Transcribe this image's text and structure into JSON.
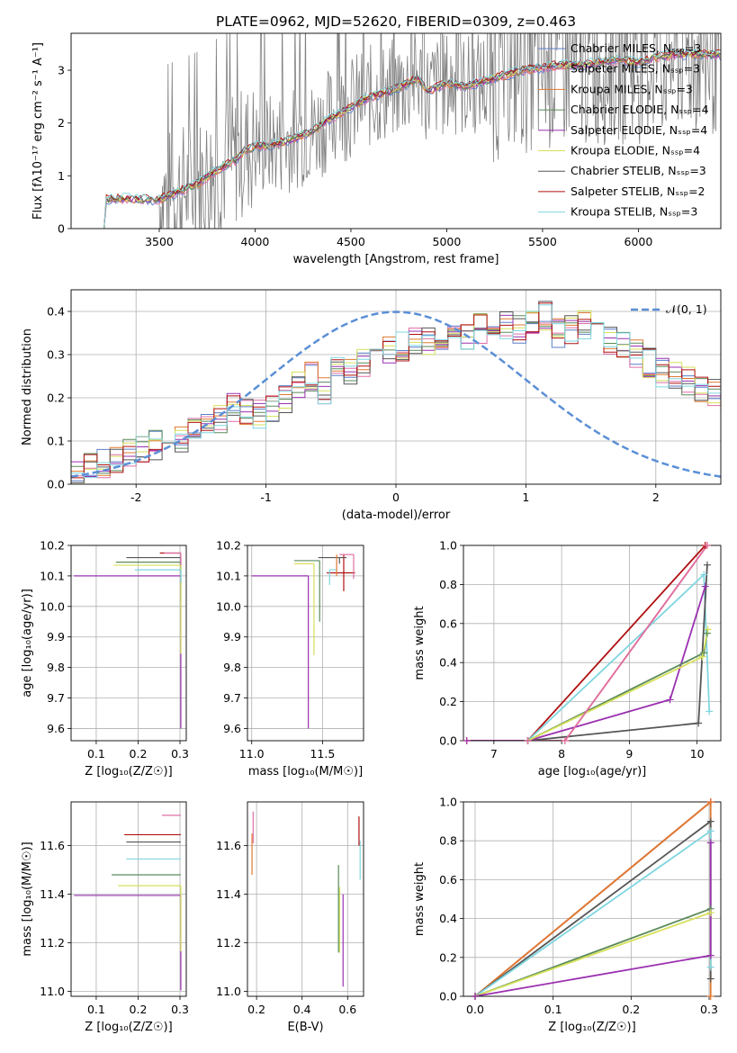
{
  "figure_title": "PLATE=0962, MJD=52620, FIBERID=0309, z=0.463",
  "colors": {
    "Chabrier MILES": "#5b7fc9",
    "Salpeter MILES": "#e06fa6",
    "Kroupa MILES": "#e07a30",
    "Chabrier ELODIE": "#5a8a5a",
    "Salpeter ELODIE": "#9b30b0",
    "Kroupa ELODIE": "#d6e05a",
    "Chabrier STELIB": "#555555",
    "Salpeter STELIB": "#b01010",
    "Kroupa STELIB": "#7fd6e0",
    "data": "#808080",
    "normal": "#5b8fd6",
    "grid": "#b0b0b0"
  },
  "chart_data": [
    {
      "id": "spectrum",
      "type": "line",
      "title": "PLATE=0962, MJD=52620, FIBERID=0309, z=0.463",
      "xlabel": "wavelength [Angstrom, rest frame]",
      "ylabel": "Flux [fλ10⁻¹⁷ erg cm⁻² s⁻¹ A⁻¹]",
      "xlim": [
        3040,
        6430
      ],
      "ylim": [
        0,
        3.7
      ],
      "xticks": [
        3500,
        4000,
        4500,
        5000,
        5500,
        6000
      ],
      "yticks": [
        0,
        1,
        2,
        3
      ],
      "grid": false,
      "legend_position": "top-right",
      "legend": [
        "Chabrier MILES, Nₛₛₚ=3",
        "Salpeter MILES, Nₛₛₚ=3",
        "Kroupa MILES, Nₛₛₚ=3",
        "Chabrier ELODIE, Nₛₛₚ=4",
        "Salpeter ELODIE, Nₛₛₚ=4",
        "Kroupa ELODIE, Nₛₛₚ=4",
        "Chabrier STELIB, Nₛₛₚ=3",
        "Salpeter STELIB, Nₛₛₚ=2",
        "Kroupa STELIB, Nₛₛₚ=3"
      ],
      "continuum": {
        "x": [
          3200,
          3220,
          3300,
          3400,
          3500,
          3600,
          3700,
          3800,
          3900,
          3950,
          4000,
          4100,
          4200,
          4300,
          4400,
          4500,
          4600,
          4700,
          4800,
          4850,
          4900,
          5000,
          5100,
          5200,
          5300,
          5400,
          5500,
          5600,
          5700,
          5800,
          5900,
          6000,
          6100,
          6200
        ],
        "y": [
          0.0,
          0.55,
          0.57,
          0.55,
          0.55,
          0.7,
          0.85,
          1.1,
          1.3,
          1.5,
          1.55,
          1.6,
          1.7,
          1.85,
          2.1,
          2.3,
          2.5,
          2.6,
          2.75,
          2.85,
          2.6,
          2.75,
          2.7,
          2.8,
          2.9,
          3.0,
          3.05,
          3.1,
          3.1,
          3.15,
          3.2,
          3.15,
          3.25,
          3.3
        ]
      },
      "data_series": {
        "x_start": 3500,
        "x_end": 6430,
        "n": 700
      }
    },
    {
      "id": "residuals",
      "type": "line",
      "xlabel": "(data-model)/error",
      "ylabel": "Normed distribution",
      "xlim": [
        -2.5,
        2.5
      ],
      "ylim": [
        0,
        0.45
      ],
      "xticks": [
        -2,
        -1,
        0,
        1,
        2
      ],
      "yticks": [
        0.0,
        0.1,
        0.2,
        0.3,
        0.4
      ],
      "grid": true,
      "legend_position": "top-right",
      "legend": [
        "𝒩(0, 1)"
      ],
      "bin_width": 0.1,
      "histogram_base": [
        0.02,
        0.04,
        0.05,
        0.06,
        0.07,
        0.08,
        0.09,
        0.1,
        0.1,
        0.12,
        0.13,
        0.15,
        0.18,
        0.17,
        0.16,
        0.18,
        0.2,
        0.23,
        0.25,
        0.22,
        0.27,
        0.26,
        0.28,
        0.3,
        0.31,
        0.32,
        0.33,
        0.33,
        0.34,
        0.35,
        0.34,
        0.36,
        0.38,
        0.37,
        0.36,
        0.38,
        0.39,
        0.35,
        0.36,
        0.37,
        0.34,
        0.33,
        0.32,
        0.3,
        0.28,
        0.26,
        0.25,
        0.24,
        0.22,
        0.21,
        0.2,
        0.19,
        0.18,
        0.17,
        0.16,
        0.15,
        0.14,
        0.14,
        0.12,
        0.11,
        0.1,
        0.09,
        0.08,
        0.07,
        0.06,
        0.05,
        0.05,
        0.05,
        0.04,
        0.04
      ]
    },
    {
      "id": "age_vs_Z",
      "type": "scatter",
      "xlabel": "Z [log₁₀(Z/Z☉)]",
      "ylabel": "age  [log₁₀(age/yr)]",
      "xlim": [
        0.04,
        0.315
      ],
      "ylim": [
        9.56,
        10.2
      ],
      "xticks": [
        0.1,
        0.2,
        0.3
      ],
      "yticks": [
        9.6,
        9.7,
        9.8,
        9.9,
        10.0,
        10.1,
        10.2
      ],
      "grid": true,
      "points": [
        {
          "model": "Salpeter ELODIE",
          "x": 0.302,
          "y": 10.1,
          "xerr": [
            0.255,
            0.0
          ],
          "yerr": [
            0.5,
            0.0
          ]
        },
        {
          "model": "Salpeter STELIB",
          "x": 0.302,
          "y": 10.175,
          "xerr": [
            0.05,
            0.0
          ],
          "yerr": [
            0.0,
            0.0
          ]
        },
        {
          "model": "Chabrier STELIB",
          "x": 0.302,
          "y": 10.16,
          "xerr": [
            0.13,
            0.0
          ],
          "yerr": [
            0.05,
            0.0
          ]
        },
        {
          "model": "Chabrier ELODIE",
          "x": 0.302,
          "y": 10.145,
          "xerr": [
            0.155,
            0.0
          ],
          "yerr": [
            0.13,
            0.0
          ]
        },
        {
          "model": "Kroupa ELODIE",
          "x": 0.302,
          "y": 10.135,
          "xerr": [
            0.16,
            0.0
          ],
          "yerr": [
            0.29,
            0.0
          ]
        },
        {
          "model": "Kroupa STELIB",
          "x": 0.302,
          "y": 10.12,
          "xerr": [
            0.11,
            0.0
          ],
          "yerr": [
            0.04,
            0.0
          ]
        },
        {
          "model": "Salpeter MILES",
          "x": 0.302,
          "y": 10.175,
          "xerr": [
            0.04,
            0.0
          ],
          "yerr": [
            0.04,
            0.0
          ]
        }
      ]
    },
    {
      "id": "age_vs_mass",
      "type": "scatter",
      "xlabel": "mass [log₁₀(M/M☉)]",
      "ylabel": "",
      "xlim": [
        10.97,
        11.79
      ],
      "ylim": [
        9.56,
        10.2
      ],
      "xticks": [
        11.0,
        11.5
      ],
      "yticks": [
        9.6,
        9.7,
        9.8,
        9.9,
        10.0,
        10.1,
        10.2
      ],
      "grid": true,
      "points": [
        {
          "model": "Salpeter ELODIE",
          "x": 11.4,
          "y": 10.1,
          "xerr": [
            0.4,
            0.0
          ],
          "yerr": [
            0.5,
            0.0
          ]
        },
        {
          "model": "Salpeter STELIB",
          "x": 11.65,
          "y": 10.11,
          "xerr": [
            0.12,
            0.08
          ],
          "yerr": [
            0.06,
            0.06
          ]
        },
        {
          "model": "Chabrier STELIB",
          "x": 11.62,
          "y": 10.16,
          "xerr": [
            0.15,
            0.05
          ],
          "yerr": [
            0.02,
            0.0
          ]
        },
        {
          "model": "Chabrier ELODIE",
          "x": 11.48,
          "y": 10.15,
          "xerr": [
            0.18,
            0.0
          ],
          "yerr": [
            0.2,
            0.0
          ]
        },
        {
          "model": "Kroupa ELODIE",
          "x": 11.44,
          "y": 10.14,
          "xerr": [
            0.14,
            0.0
          ],
          "yerr": [
            0.3,
            0.0
          ]
        },
        {
          "model": "Kroupa STELIB",
          "x": 11.55,
          "y": 10.12,
          "xerr": [
            0.0,
            0.05
          ],
          "yerr": [
            0.05,
            0.0
          ]
        },
        {
          "model": "Salpeter MILES",
          "x": 11.72,
          "y": 10.17,
          "xerr": [
            0.1,
            0.0
          ],
          "yerr": [
            0.08,
            0.0
          ]
        },
        {
          "model": "Kroupa MILES",
          "x": 11.6,
          "y": 10.17,
          "xerr": [
            0.0,
            0.0
          ],
          "yerr": [
            0.07,
            0.0
          ]
        }
      ]
    },
    {
      "id": "weight_vs_age",
      "type": "line",
      "xlabel": "age  [log₁₀(age/yr)]",
      "ylabel": "mass weight",
      "xlim": [
        6.55,
        10.35
      ],
      "ylim": [
        0,
        1.0
      ],
      "xticks": [
        7,
        8,
        9,
        10
      ],
      "yticks": [
        0.0,
        0.2,
        0.4,
        0.6,
        0.8,
        1.0
      ],
      "grid": true,
      "series": [
        {
          "model": "Salpeter STELIB",
          "x": [
            7.5,
            10.12
          ],
          "y": [
            0.0,
            1.0
          ]
        },
        {
          "model": "Kroupa MILES",
          "x": [
            6.6,
            8.05,
            10.15
          ],
          "y": [
            0.0,
            0.0,
            1.0
          ]
        },
        {
          "model": "Kroupa STELIB",
          "x": [
            7.5,
            10.1,
            10.18
          ],
          "y": [
            0.0,
            0.85,
            0.15
          ]
        },
        {
          "model": "Chabrier STELIB",
          "x": [
            7.5,
            10.02,
            10.15
          ],
          "y": [
            0.0,
            0.09,
            0.9
          ]
        },
        {
          "model": "Salpeter ELODIE",
          "x": [
            6.6,
            7.5,
            9.6,
            10.12
          ],
          "y": [
            0.0,
            0.0,
            0.21,
            0.79
          ]
        },
        {
          "model": "Chabrier ELODIE",
          "x": [
            7.5,
            10.1,
            10.15
          ],
          "y": [
            0.0,
            0.45,
            0.55
          ]
        },
        {
          "model": "Kroupa ELODIE",
          "x": [
            7.5,
            10.08,
            10.16
          ],
          "y": [
            0.0,
            0.43,
            0.57
          ]
        },
        {
          "model": "Salpeter MILES",
          "x": [
            7.5,
            8.05,
            10.15
          ],
          "y": [
            0.0,
            0.0,
            1.0
          ]
        }
      ]
    },
    {
      "id": "mass_vs_Z",
      "type": "scatter",
      "xlabel": "Z [log₁₀(Z/Z☉)]",
      "ylabel": "mass [log₁₀(M/M☉)]",
      "xlim": [
        0.04,
        0.315
      ],
      "ylim": [
        10.98,
        11.78
      ],
      "xticks": [
        0.1,
        0.2,
        0.3
      ],
      "yticks": [
        11.0,
        11.2,
        11.4,
        11.6
      ],
      "grid": true,
      "points": [
        {
          "model": "Salpeter ELODIE",
          "x": 0.302,
          "y": 11.395,
          "xerr": [
            0.255,
            0.0
          ],
          "yerr": [
            0.39,
            0.0
          ]
        },
        {
          "model": "Kroupa ELODIE",
          "x": 0.302,
          "y": 11.435,
          "xerr": [
            0.15,
            0.0
          ],
          "yerr": [
            0.27,
            0.0
          ]
        },
        {
          "model": "Chabrier ELODIE",
          "x": 0.302,
          "y": 11.48,
          "xerr": [
            0.165,
            0.0
          ],
          "yerr": [
            0.0,
            0.0
          ]
        },
        {
          "model": "Kroupa STELIB",
          "x": 0.302,
          "y": 11.545,
          "xerr": [
            0.13,
            0.0
          ],
          "yerr": [
            0.0,
            0.0
          ]
        },
        {
          "model": "Chabrier STELIB",
          "x": 0.302,
          "y": 11.615,
          "xerr": [
            0.13,
            0.0
          ],
          "yerr": [
            0.0,
            0.0
          ]
        },
        {
          "model": "Salpeter STELIB",
          "x": 0.302,
          "y": 11.645,
          "xerr": [
            0.135,
            0.0
          ],
          "yerr": [
            0.0,
            0.0
          ]
        },
        {
          "model": "Salpeter MILES",
          "x": 0.302,
          "y": 11.725,
          "xerr": [
            0.045,
            0.0
          ],
          "yerr": [
            0.0,
            0.0
          ]
        }
      ]
    },
    {
      "id": "mass_vs_EBV",
      "type": "scatter",
      "xlabel": "E(B-V)",
      "ylabel": "",
      "xlim": [
        0.16,
        0.67
      ],
      "ylim": [
        10.98,
        11.78
      ],
      "xticks": [
        0.2,
        0.4,
        0.6
      ],
      "yticks": [
        11.0,
        11.2,
        11.4,
        11.6
      ],
      "grid": true,
      "points": [
        {
          "model": "Salpeter ELODIE",
          "x": 0.58,
          "y": 11.4,
          "xerr": [
            0,
            0
          ],
          "yerr": [
            0.38,
            0.0
          ]
        },
        {
          "model": "Kroupa ELODIE",
          "x": 0.565,
          "y": 11.43,
          "xerr": [
            0,
            0
          ],
          "yerr": [
            0.27,
            0.0
          ]
        },
        {
          "model": "Chabrier ELODIE",
          "x": 0.56,
          "y": 11.48,
          "xerr": [
            0,
            0
          ],
          "yerr": [
            0.32,
            0.04
          ]
        },
        {
          "model": "Kroupa MILES",
          "x": 0.18,
          "y": 11.6,
          "xerr": [
            0,
            0
          ],
          "yerr": [
            0.12,
            0.05
          ]
        },
        {
          "model": "Salpeter MILES",
          "x": 0.185,
          "y": 11.65,
          "xerr": [
            0,
            0
          ],
          "yerr": [
            0.04,
            0.09
          ]
        },
        {
          "model": "Salpeter STELIB",
          "x": 0.65,
          "y": 11.65,
          "xerr": [
            0,
            0
          ],
          "yerr": [
            0.05,
            0.07
          ]
        },
        {
          "model": "Kroupa STELIB",
          "x": 0.655,
          "y": 11.56,
          "xerr": [
            0,
            0
          ],
          "yerr": [
            0.1,
            0.06
          ]
        }
      ]
    },
    {
      "id": "weight_vs_Z",
      "type": "line",
      "xlabel": "Z [log₁₀(Z/Z☉)]",
      "ylabel": "mass weight",
      "xlim": [
        -0.015,
        0.315
      ],
      "ylim": [
        0,
        1.0
      ],
      "xticks": [
        0.0,
        0.1,
        0.2,
        0.3
      ],
      "yticks": [
        0.0,
        0.2,
        0.4,
        0.6,
        0.8,
        1.0
      ],
      "grid": true,
      "series": [
        {
          "model": "Salpeter STELIB",
          "x": [
            0.0,
            0.302
          ],
          "y": [
            0.0,
            1.0
          ]
        },
        {
          "model": "Kroupa MILES",
          "x": [
            0.0,
            0.302,
            0.302
          ],
          "y": [
            0.0,
            1.0,
            0.0
          ]
        },
        {
          "model": "Chabrier STELIB",
          "x": [
            0.0,
            0.302,
            0.302
          ],
          "y": [
            0.0,
            0.9,
            0.09
          ]
        },
        {
          "model": "Kroupa STELIB",
          "x": [
            0.0,
            0.302,
            0.302
          ],
          "y": [
            0.0,
            0.85,
            0.15
          ]
        },
        {
          "model": "Chabrier ELODIE",
          "x": [
            0.0,
            0.302
          ],
          "y": [
            0.0,
            0.45
          ]
        },
        {
          "model": "Kroupa ELODIE",
          "x": [
            0.0,
            0.302
          ],
          "y": [
            0.0,
            0.43
          ]
        },
        {
          "model": "Salpeter ELODIE",
          "x": [
            0.0,
            0.302,
            0.302
          ],
          "y": [
            0.0,
            0.21,
            0.79
          ]
        }
      ]
    }
  ]
}
